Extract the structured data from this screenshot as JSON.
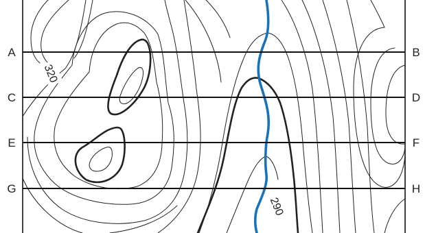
{
  "profile_lines": {
    "left_labels": [
      "A",
      "C",
      "E",
      "G"
    ],
    "right_labels": [
      "B",
      "D",
      "F",
      "H"
    ]
  },
  "contour_labels": {
    "upper_left": "320",
    "lower_right": "290"
  },
  "colors": {
    "river": "#1a73b8",
    "contours": "#222222",
    "background": "#ffffff"
  }
}
